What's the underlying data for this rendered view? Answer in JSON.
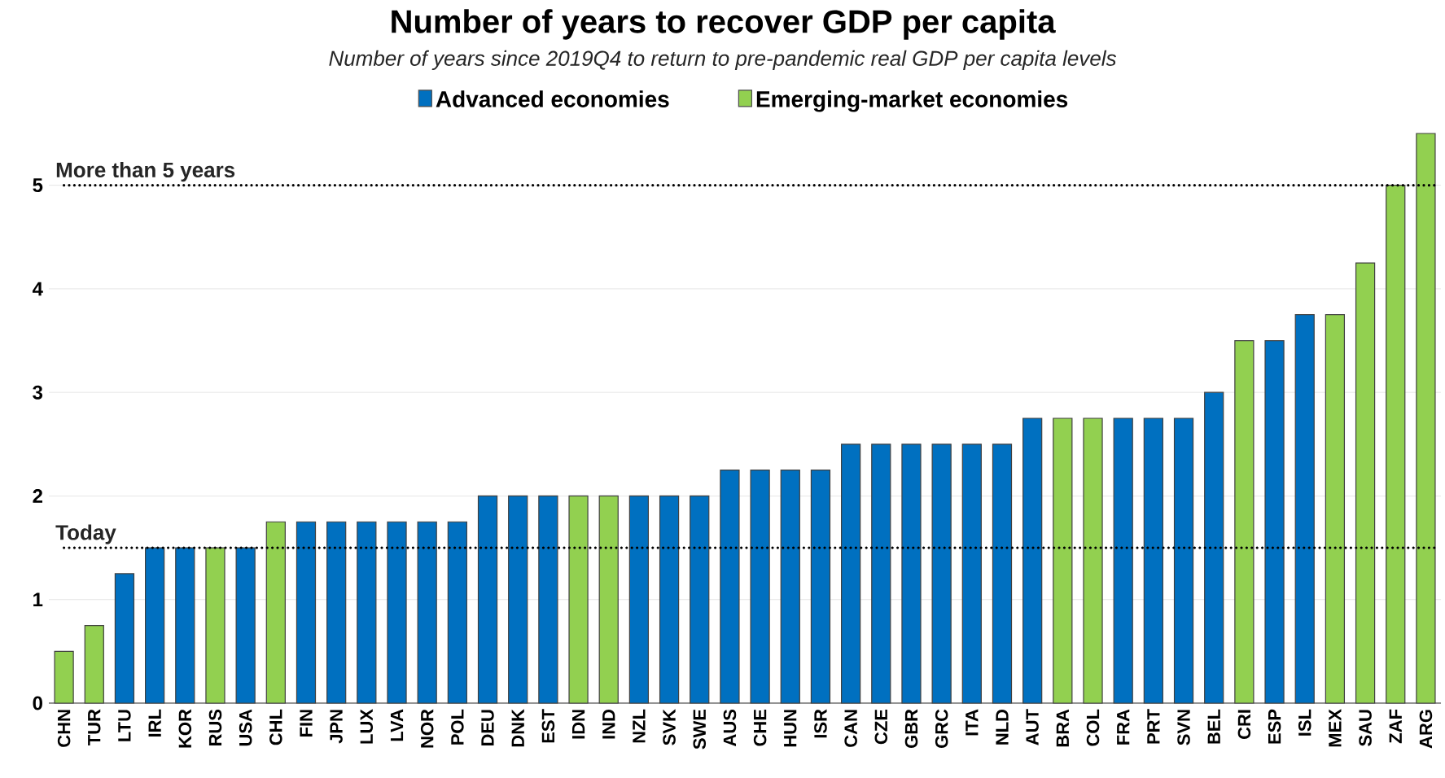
{
  "chart_data": {
    "type": "bar",
    "title": "Number of years to recover GDP per capita",
    "subtitle": "Number of years since 2019Q4 to return to pre-pandemic real GDP per capita levels",
    "categories": [
      "CHN",
      "TUR",
      "LTU",
      "IRL",
      "KOR",
      "RUS",
      "USA",
      "CHL",
      "FIN",
      "JPN",
      "LUX",
      "LVA",
      "NOR",
      "POL",
      "DEU",
      "DNK",
      "EST",
      "IDN",
      "IND",
      "NZL",
      "SVK",
      "SWE",
      "AUS",
      "CHE",
      "HUN",
      "ISR",
      "CAN",
      "CZE",
      "GBR",
      "GRC",
      "ITA",
      "NLD",
      "AUT",
      "BRA",
      "COL",
      "FRA",
      "PRT",
      "SVN",
      "BEL",
      "CRI",
      "ESP",
      "ISL",
      "MEX",
      "SAU",
      "ZAF",
      "ARG"
    ],
    "series": [
      {
        "name": "Advanced economies",
        "color": "#0070c0",
        "values": [
          null,
          null,
          1.25,
          1.5,
          1.5,
          null,
          1.5,
          null,
          1.75,
          1.75,
          1.75,
          1.75,
          1.75,
          1.75,
          2,
          2,
          2,
          null,
          null,
          2,
          2,
          2,
          2.25,
          2.25,
          2.25,
          2.25,
          2.5,
          2.5,
          2.5,
          2.5,
          2.5,
          2.5,
          2.75,
          null,
          null,
          2.75,
          2.75,
          2.75,
          3,
          null,
          3.5,
          3.75,
          null,
          null,
          null,
          null
        ]
      },
      {
        "name": "Emerging-market economies",
        "color": "#92d050",
        "values": [
          0.5,
          0.75,
          null,
          null,
          null,
          1.5,
          null,
          1.75,
          null,
          null,
          null,
          null,
          null,
          null,
          null,
          null,
          null,
          2,
          2,
          null,
          null,
          null,
          null,
          null,
          null,
          null,
          null,
          null,
          null,
          null,
          null,
          null,
          null,
          2.75,
          2.75,
          null,
          null,
          null,
          null,
          3.5,
          null,
          null,
          3.75,
          4.25,
          5,
          5.5
        ]
      }
    ],
    "ylim": [
      0,
      5.5
    ],
    "yticks": [
      0,
      1,
      2,
      3,
      4,
      5
    ],
    "grid": "y",
    "legend": "top",
    "ref_lines": [
      {
        "axis": "y",
        "value": 5,
        "label": "More than 5 years",
        "line_style": "dotted",
        "color": "#000000"
      },
      {
        "axis": "y",
        "value": 1.5,
        "label": "Today",
        "line_style": "dotted",
        "color": "#000000"
      }
    ]
  }
}
